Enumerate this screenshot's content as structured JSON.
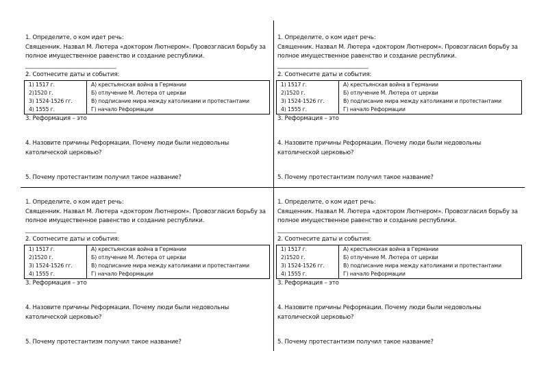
{
  "card": {
    "q1_title": "1. Определите, о ком идет речь:",
    "q1_line1": "Священник. Назвал М. Лютера «доктором Лютнером». Провозгласил борьбу за",
    "q1_line2": "полное имущественное равенство и создание республики.",
    "answer_line": "________________________________________",
    "q2_title": "2. Соотнесите даты и события:",
    "table": [
      {
        "date": "1) 1517 г.",
        "event": "А) крестьянская война в Германии"
      },
      {
        "date": "2)1520 г.",
        "event": "Б) отлучение М. Лютера от церкви"
      },
      {
        "date": "3) 1524-1526 гг.",
        "event": "В) подписание мира между католиками и протестантами"
      },
      {
        "date": "4) 1555 г.",
        "event": "Г) начало Реформации"
      }
    ],
    "q3": "3. Реформация – это",
    "q4_line1": "4. Назовите причины Реформации. Почему люди были недовольны",
    "q4_line2": "католической церковью?",
    "q5": "5. Почему протестантизм получил такое название?"
  }
}
